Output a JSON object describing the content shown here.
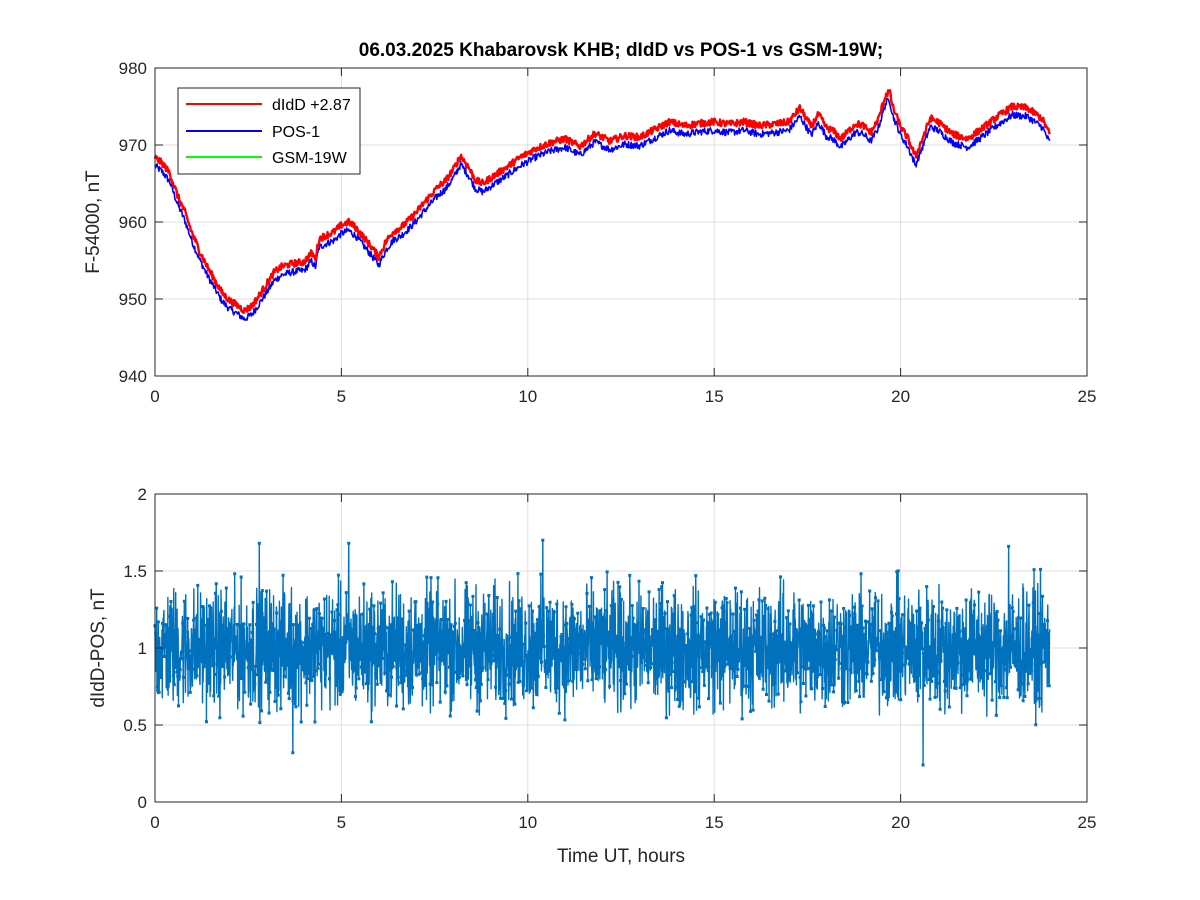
{
  "chart_data": [
    {
      "type": "line",
      "title": "06.03.2025  Khabarovsk KHB; dIdD vs POS-1 vs GSM-19W;",
      "xlabel": "",
      "ylabel": "F-54000, nT",
      "xlim": [
        0,
        25
      ],
      "ylim": [
        940,
        980
      ],
      "xticks": [
        "0",
        "5",
        "10",
        "15",
        "20",
        "25"
      ],
      "yticks": [
        "940",
        "950",
        "960",
        "970",
        "980"
      ],
      "grid": true,
      "legend_position": "top-left",
      "series": [
        {
          "name": "dIdD +2.87",
          "color": "#ff0000",
          "x": [
            0,
            0.2,
            0.4,
            0.6,
            0.8,
            1.0,
            1.2,
            1.4,
            1.6,
            1.8,
            2.0,
            2.2,
            2.4,
            2.6,
            2.8,
            3.0,
            3.2,
            3.4,
            3.6,
            3.8,
            4.0,
            4.2,
            4.3,
            4.4,
            4.6,
            4.8,
            5.0,
            5.2,
            5.4,
            5.6,
            5.8,
            6.0,
            6.2,
            6.4,
            6.6,
            6.8,
            7.0,
            7.2,
            7.4,
            7.6,
            7.8,
            8.0,
            8.2,
            8.4,
            8.6,
            8.8,
            9.0,
            9.4,
            9.8,
            10.2,
            10.6,
            11.0,
            11.4,
            11.8,
            12.2,
            12.6,
            13.0,
            13.4,
            13.8,
            14.2,
            14.6,
            15.0,
            15.4,
            15.8,
            16.2,
            16.6,
            17.0,
            17.3,
            17.6,
            17.8,
            18.0,
            18.2,
            18.4,
            18.6,
            18.8,
            19.0,
            19.2,
            19.4,
            19.6,
            19.7,
            19.8,
            20.0,
            20.2,
            20.4,
            20.6,
            20.8,
            21.0,
            21.4,
            21.8,
            22.2,
            22.6,
            23.0,
            23.4,
            23.8,
            24.0
          ],
          "y": [
            968.4,
            967.6,
            966.3,
            963.5,
            961.3,
            958.5,
            956.2,
            954.2,
            952.5,
            950.8,
            949.8,
            949.2,
            948.5,
            949.1,
            950.5,
            952.0,
            953.5,
            954.2,
            954.5,
            954.7,
            954.8,
            956.0,
            955.2,
            957.8,
            958.3,
            958.7,
            959.6,
            960.0,
            959.2,
            958.0,
            956.8,
            955.5,
            957.5,
            958.8,
            959.3,
            960.2,
            961.2,
            962.4,
            963.5,
            964.6,
            965.4,
            966.8,
            968.6,
            967.2,
            965.4,
            965.0,
            965.7,
            967.0,
            968.4,
            969.5,
            970.3,
            970.8,
            969.8,
            971.5,
            970.5,
            971.2,
            971.0,
            972.0,
            973.0,
            972.5,
            972.8,
            973.0,
            972.7,
            973.0,
            972.5,
            972.7,
            973.0,
            974.8,
            972.4,
            974.0,
            972.3,
            971.8,
            970.8,
            971.8,
            972.8,
            972.5,
            971.6,
            973.3,
            976.5,
            977.0,
            974.8,
            972.4,
            970.8,
            968.5,
            971.0,
            973.5,
            973.0,
            971.4,
            970.8,
            972.2,
            973.7,
            975.0,
            974.8,
            973.4,
            971.4
          ]
        },
        {
          "name": "POS-1",
          "color": "#0000ff",
          "x": [
            0,
            0.2,
            0.4,
            0.6,
            0.8,
            1.0,
            1.2,
            1.4,
            1.6,
            1.8,
            2.0,
            2.2,
            2.4,
            2.6,
            2.8,
            3.0,
            3.2,
            3.4,
            3.6,
            3.8,
            4.0,
            4.2,
            4.3,
            4.4,
            4.6,
            4.8,
            5.0,
            5.2,
            5.4,
            5.6,
            5.8,
            6.0,
            6.2,
            6.4,
            6.6,
            6.8,
            7.0,
            7.2,
            7.4,
            7.6,
            7.8,
            8.0,
            8.2,
            8.4,
            8.6,
            8.8,
            9.0,
            9.4,
            9.8,
            10.2,
            10.6,
            11.0,
            11.4,
            11.8,
            12.2,
            12.6,
            13.0,
            13.4,
            13.8,
            14.2,
            14.6,
            15.0,
            15.4,
            15.8,
            16.2,
            16.6,
            17.0,
            17.3,
            17.6,
            17.8,
            18.0,
            18.2,
            18.4,
            18.6,
            18.8,
            19.0,
            19.2,
            19.4,
            19.6,
            19.7,
            19.8,
            20.0,
            20.2,
            20.4,
            20.6,
            20.8,
            21.0,
            21.4,
            21.8,
            22.2,
            22.6,
            23.0,
            23.4,
            23.8,
            24.0
          ],
          "y": [
            967.3,
            966.5,
            965.2,
            962.4,
            960.2,
            957.4,
            955.1,
            953.1,
            951.4,
            949.7,
            948.7,
            948.1,
            947.4,
            948.0,
            949.4,
            950.9,
            952.4,
            953.1,
            953.4,
            953.6,
            953.7,
            954.9,
            954.1,
            956.7,
            957.2,
            957.6,
            958.5,
            958.9,
            958.1,
            956.9,
            955.7,
            954.4,
            956.4,
            957.7,
            958.2,
            959.1,
            960.1,
            961.3,
            962.4,
            963.5,
            964.3,
            965.7,
            967.5,
            966.1,
            964.3,
            963.9,
            964.6,
            965.9,
            967.3,
            968.4,
            969.2,
            969.7,
            968.7,
            970.4,
            969.4,
            970.1,
            969.9,
            970.9,
            971.9,
            971.4,
            971.7,
            971.9,
            971.6,
            971.9,
            971.4,
            971.6,
            971.9,
            973.7,
            971.3,
            972.9,
            971.2,
            970.7,
            969.7,
            970.7,
            971.7,
            971.4,
            970.5,
            972.2,
            975.4,
            975.9,
            973.7,
            971.3,
            969.7,
            967.4,
            969.9,
            972.4,
            971.9,
            970.3,
            969.7,
            971.1,
            972.6,
            973.9,
            973.7,
            972.3,
            970.3
          ]
        },
        {
          "name": "GSM-19W",
          "color": "#00ff00",
          "x": [],
          "y": []
        }
      ]
    },
    {
      "type": "line",
      "title": "",
      "xlabel": "Time UT, hours",
      "ylabel": "dIdD-POS, nT",
      "xlim": [
        0,
        25
      ],
      "ylim": [
        0,
        2
      ],
      "xticks": [
        "0",
        "5",
        "10",
        "15",
        "20",
        "25"
      ],
      "yticks": [
        "0",
        "0.5",
        "1",
        "1.5",
        "2"
      ],
      "grid": true,
      "series": [
        {
          "color": "#0072bd",
          "x_range": [
            0,
            24
          ],
          "mean": 1.0,
          "typical_range": [
            0.6,
            1.4
          ],
          "extremes_x": [
            2.8,
            3.7,
            5.2,
            10.4,
            20.6,
            22.9
          ],
          "extremes_y": [
            1.68,
            0.32,
            1.68,
            1.7,
            0.24,
            1.66
          ]
        }
      ]
    }
  ]
}
